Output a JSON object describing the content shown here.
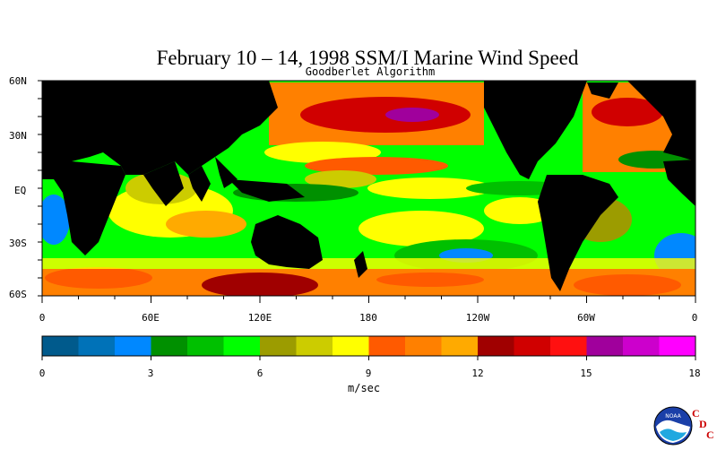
{
  "title": "February 10 – 14, 1998 SSM/I Marine Wind Speed",
  "subtitle": "Goodberlet Algorithm",
  "lat_labels": [
    "60N",
    "30N",
    "EQ",
    "30S",
    "60S"
  ],
  "lon_labels": [
    "0",
    "60E",
    "120E",
    "180",
    "120W",
    "60W",
    "0"
  ],
  "colorbar": {
    "colors": [
      "#005a8c",
      "#0072b8",
      "#0088ff",
      "#009000",
      "#00c000",
      "#00ff00",
      "#9c9c00",
      "#cccc00",
      "#ffff00",
      "#ff5a00",
      "#ff8000",
      "#ffaa00",
      "#a00000",
      "#d00000",
      "#ff1010",
      "#a0009c",
      "#cc00cc",
      "#ff00ff"
    ],
    "tick_labels": [
      "0",
      "3",
      "6",
      "9",
      "12",
      "15",
      "18"
    ],
    "units": "m/sec",
    "min": 0,
    "max": 18
  },
  "logo": {
    "org": "NOAA",
    "letters": [
      "C",
      "D",
      "C"
    ]
  }
}
